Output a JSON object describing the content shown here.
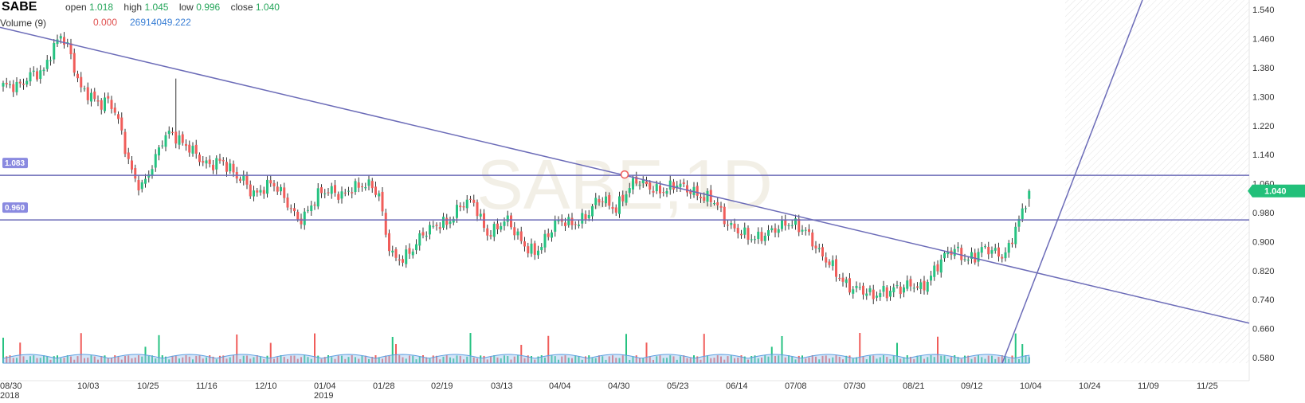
{
  "header": {
    "symbol": "SABE",
    "open_label": "open",
    "open_value": "1.018",
    "high_label": "high",
    "high_value": "1.045",
    "low_label": "low",
    "low_value": "0.996",
    "close_label": "close",
    "close_value": "1.040",
    "volume_label": "Volume (9)",
    "volume_change": "0.000",
    "volume_value": "26914049.222"
  },
  "watermark": "SABE,1D",
  "last_price_label": "1.040",
  "horizontal_lines": [
    {
      "label": "1.083",
      "price": 1.083
    },
    {
      "label": "0.960",
      "price": 0.96
    }
  ],
  "colors": {
    "up": "#26c281",
    "down": "#f05d5a",
    "trendline": "#6c6cb8",
    "volume_area": "#9ec5f0",
    "last_price_bg": "#22c07a"
  },
  "chart_data": {
    "type": "candlestick",
    "title": "SABE",
    "interval": "1D",
    "x_tick_labels": [
      "08/30",
      "10/03",
      "10/25",
      "11/16",
      "12/10",
      "01/04",
      "01/28",
      "02/19",
      "03/13",
      "04/04",
      "04/30",
      "05/23",
      "06/14",
      "07/08",
      "07/30",
      "08/21",
      "09/12",
      "10/04",
      "10/24",
      "11/09",
      "11/25"
    ],
    "x_year_labels": [
      {
        "under": "08/30",
        "year": "2018"
      },
      {
        "under": "01/04",
        "year": "2019"
      }
    ],
    "y_tick_labels": [
      "1.540",
      "1.460",
      "1.380",
      "1.300",
      "1.220",
      "1.140",
      "1.060",
      "0.980",
      "0.900",
      "0.820",
      "0.740",
      "0.660",
      "0.580"
    ],
    "ylim": [
      0.54,
      1.56
    ],
    "last_bar": {
      "open": 1.018,
      "high": 1.045,
      "low": 0.996,
      "close": 1.04
    },
    "close_path": [
      [
        0,
        1.33
      ],
      [
        5,
        1.33
      ],
      [
        8,
        1.36
      ],
      [
        12,
        1.37
      ],
      [
        14,
        1.42
      ],
      [
        17,
        1.47
      ],
      [
        19,
        1.44
      ],
      [
        21,
        1.38
      ],
      [
        23,
        1.32
      ],
      [
        25,
        1.31
      ],
      [
        27,
        1.29
      ],
      [
        29,
        1.28
      ],
      [
        31,
        1.29
      ],
      [
        33,
        1.26
      ],
      [
        35,
        1.2
      ],
      [
        37,
        1.12
      ],
      [
        39,
        1.07
      ],
      [
        41,
        1.05
      ],
      [
        43,
        1.09
      ],
      [
        45,
        1.13
      ],
      [
        47,
        1.18
      ],
      [
        49,
        1.2
      ],
      [
        51,
        1.19
      ],
      [
        53,
        1.17
      ],
      [
        55,
        1.16
      ],
      [
        57,
        1.14
      ],
      [
        59,
        1.12
      ],
      [
        61,
        1.11
      ],
      [
        63,
        1.12
      ],
      [
        65,
        1.12
      ],
      [
        67,
        1.1
      ],
      [
        69,
        1.08
      ],
      [
        71,
        1.07
      ],
      [
        73,
        1.04
      ],
      [
        75,
        1.03
      ],
      [
        77,
        1.05
      ],
      [
        79,
        1.06
      ],
      [
        81,
        1.05
      ],
      [
        83,
        1.02
      ],
      [
        85,
        0.99
      ],
      [
        87,
        0.96
      ],
      [
        89,
        0.97
      ],
      [
        91,
        1.0
      ],
      [
        93,
        1.03
      ],
      [
        95,
        1.04
      ],
      [
        97,
        1.04
      ],
      [
        99,
        1.03
      ],
      [
        101,
        1.03
      ],
      [
        103,
        1.05
      ],
      [
        105,
        1.05
      ],
      [
        107,
        1.06
      ],
      [
        109,
        1.05
      ],
      [
        111,
        1.03
      ],
      [
        113,
        0.92
      ],
      [
        115,
        0.86
      ],
      [
        117,
        0.85
      ],
      [
        119,
        0.86
      ],
      [
        121,
        0.88
      ],
      [
        123,
        0.91
      ],
      [
        125,
        0.93
      ],
      [
        127,
        0.94
      ],
      [
        129,
        0.95
      ],
      [
        131,
        0.95
      ],
      [
        133,
        0.97
      ],
      [
        135,
        1.0
      ],
      [
        137,
        1.01
      ],
      [
        139,
        1.01
      ],
      [
        141,
        0.96
      ],
      [
        143,
        0.92
      ],
      [
        145,
        0.93
      ],
      [
        147,
        0.95
      ],
      [
        149,
        0.96
      ],
      [
        151,
        0.93
      ],
      [
        153,
        0.9
      ],
      [
        155,
        0.88
      ],
      [
        157,
        0.87
      ],
      [
        159,
        0.89
      ],
      [
        161,
        0.92
      ],
      [
        163,
        0.95
      ],
      [
        165,
        0.96
      ],
      [
        167,
        0.95
      ],
      [
        169,
        0.95
      ],
      [
        171,
        0.96
      ],
      [
        173,
        0.98
      ],
      [
        175,
        1.01
      ],
      [
        177,
        1.02
      ],
      [
        179,
        1.0
      ],
      [
        181,
        0.99
      ],
      [
        183,
        1.02
      ],
      [
        185,
        1.05
      ],
      [
        187,
        1.07
      ],
      [
        189,
        1.06
      ],
      [
        191,
        1.05
      ],
      [
        193,
        1.04
      ],
      [
        195,
        1.04
      ],
      [
        197,
        1.05
      ],
      [
        199,
        1.06
      ],
      [
        201,
        1.05
      ],
      [
        203,
        1.04
      ],
      [
        205,
        1.03
      ],
      [
        207,
        1.02
      ],
      [
        209,
        1.02
      ],
      [
        211,
        1.0
      ],
      [
        213,
        0.96
      ],
      [
        215,
        0.94
      ],
      [
        217,
        0.93
      ],
      [
        219,
        0.92
      ],
      [
        221,
        0.91
      ],
      [
        223,
        0.91
      ],
      [
        225,
        0.92
      ],
      [
        227,
        0.93
      ],
      [
        229,
        0.94
      ],
      [
        231,
        0.95
      ],
      [
        233,
        0.95
      ],
      [
        235,
        0.94
      ],
      [
        237,
        0.93
      ],
      [
        239,
        0.9
      ],
      [
        241,
        0.87
      ],
      [
        243,
        0.85
      ],
      [
        245,
        0.83
      ],
      [
        247,
        0.8
      ],
      [
        249,
        0.78
      ],
      [
        251,
        0.77
      ],
      [
        253,
        0.77
      ],
      [
        255,
        0.76
      ],
      [
        257,
        0.75
      ],
      [
        259,
        0.76
      ],
      [
        261,
        0.76
      ],
      [
        263,
        0.77
      ],
      [
        265,
        0.77
      ],
      [
        267,
        0.78
      ],
      [
        269,
        0.78
      ],
      [
        271,
        0.77
      ],
      [
        273,
        0.79
      ],
      [
        275,
        0.82
      ],
      [
        277,
        0.85
      ],
      [
        279,
        0.87
      ],
      [
        281,
        0.88
      ],
      [
        283,
        0.86
      ],
      [
        285,
        0.85
      ],
      [
        287,
        0.86
      ],
      [
        289,
        0.88
      ],
      [
        291,
        0.88
      ],
      [
        293,
        0.87
      ],
      [
        295,
        0.86
      ],
      [
        297,
        0.88
      ],
      [
        299,
        0.94
      ],
      [
        301,
        0.98
      ],
      [
        303,
        1.04
      ]
    ]
  }
}
